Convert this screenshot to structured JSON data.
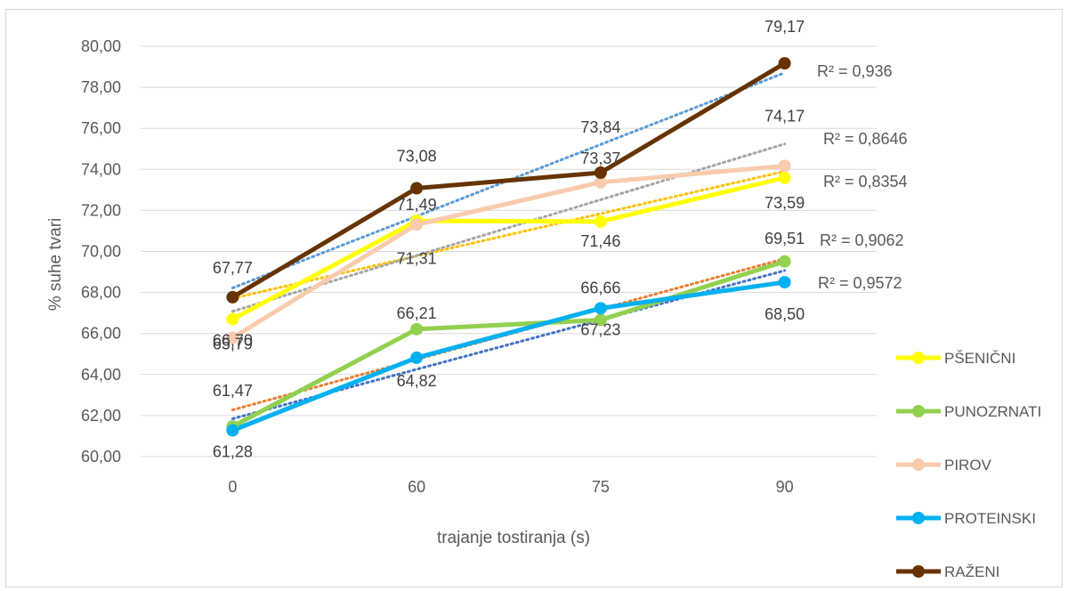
{
  "chart_data": {
    "type": "line",
    "categories": [
      "0",
      "60",
      "75",
      "90"
    ],
    "xlabel": "trajanje tostiranja (s)",
    "ylabel": "% suhe tvari",
    "ylim": [
      60,
      80
    ],
    "yticks": [
      "60,00",
      "62,00",
      "64,00",
      "66,00",
      "68,00",
      "70,00",
      "72,00",
      "74,00",
      "76,00",
      "78,00",
      "80,00"
    ],
    "grid": true,
    "legend_position": "right",
    "series": [
      {
        "name": "PŠENIČNI",
        "color": "#ffff00",
        "trend_color": "#ffc000",
        "values": [
          66.7,
          71.49,
          71.46,
          73.59
        ],
        "labels": [
          "66,70",
          "71,49",
          "71,46",
          "73,59"
        ],
        "r2": "R² = 0,8354"
      },
      {
        "name": "PUNOZRNATI",
        "color": "#92d050",
        "trend_color": "#ed7d31",
        "values": [
          61.47,
          66.21,
          66.66,
          69.51
        ],
        "labels": [
          "61,47",
          "66,21",
          "66,66",
          "69,51"
        ],
        "r2": "R² = 0,9062"
      },
      {
        "name": "PIROV",
        "color": "#f8cbad",
        "trend_color": "#a5a5a5",
        "values": [
          65.79,
          71.31,
          73.37,
          74.17
        ],
        "labels": [
          "65,79",
          "71,31",
          "73,37",
          "74,17"
        ],
        "r2": "R² = 0,8646"
      },
      {
        "name": "PROTEINSKI",
        "color": "#00b0f0",
        "trend_color": "#4472c4",
        "values": [
          61.28,
          64.82,
          67.23,
          68.5
        ],
        "labels": [
          "61,28",
          "64,82",
          "67,23",
          "68,50"
        ],
        "r2": "R² = 0,9572"
      },
      {
        "name": "RAŽENI",
        "color": "#663300",
        "trend_color": "#5b9bd5",
        "values": [
          67.77,
          73.08,
          73.84,
          79.17
        ],
        "labels": [
          "67,77",
          "73,08",
          "73,84",
          "79,17"
        ],
        "r2": "R² = 0,936"
      }
    ]
  }
}
